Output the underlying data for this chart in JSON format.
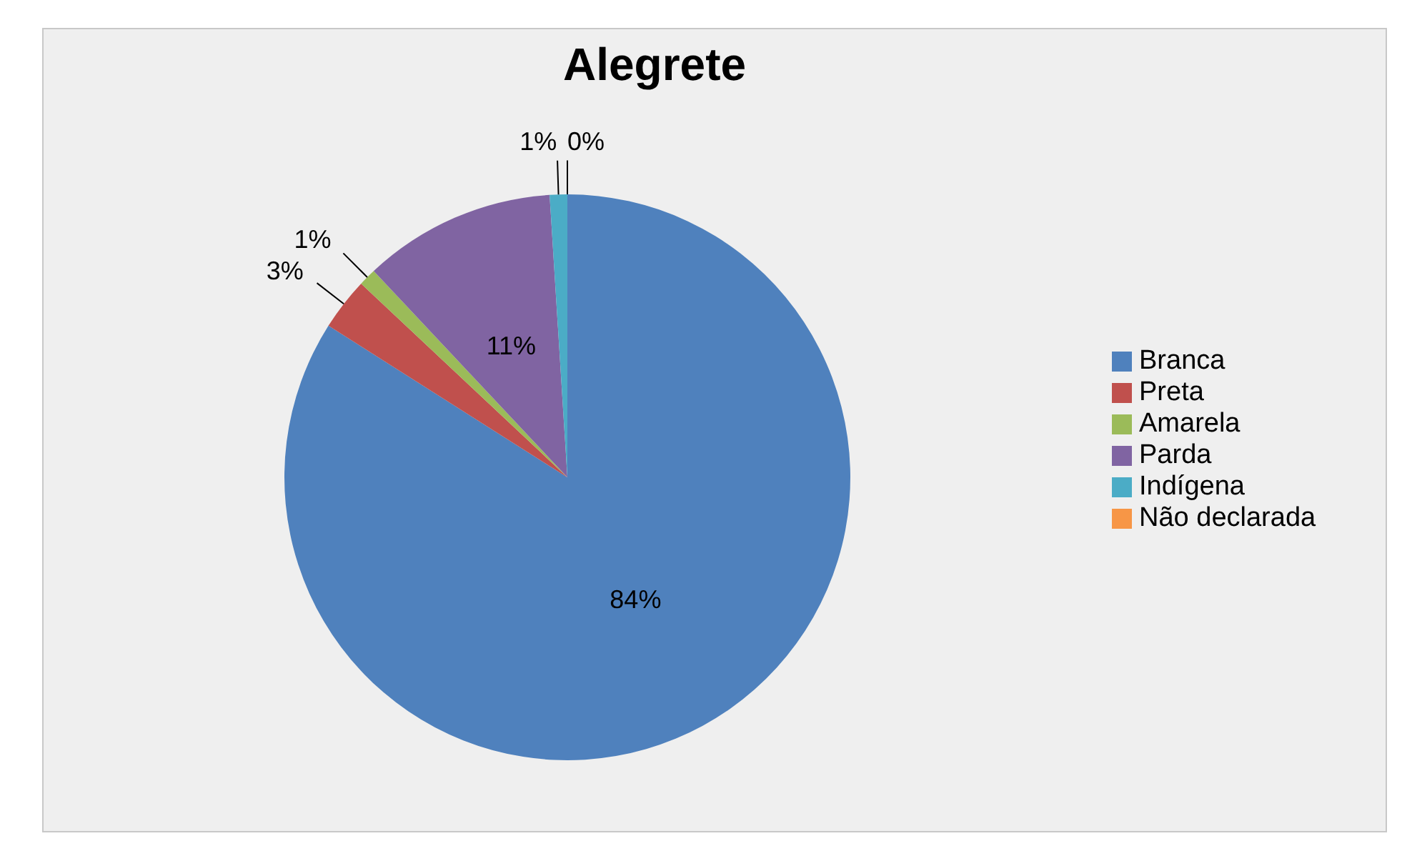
{
  "chart_data": {
    "type": "pie",
    "title": "Alegrete",
    "categories": [
      "Branca",
      "Preta",
      "Amarela",
      "Parda",
      "Indígena",
      "Não declarada"
    ],
    "values": [
      84,
      3,
      1,
      11,
      1,
      0
    ],
    "colors": [
      "#4f81bd",
      "#c0504d",
      "#9bbb59",
      "#8064a2",
      "#4bacc6",
      "#f79646"
    ],
    "value_labels": [
      "84%",
      "3%",
      "1%",
      "11%",
      "1%",
      "0%"
    ],
    "legend": "right"
  }
}
